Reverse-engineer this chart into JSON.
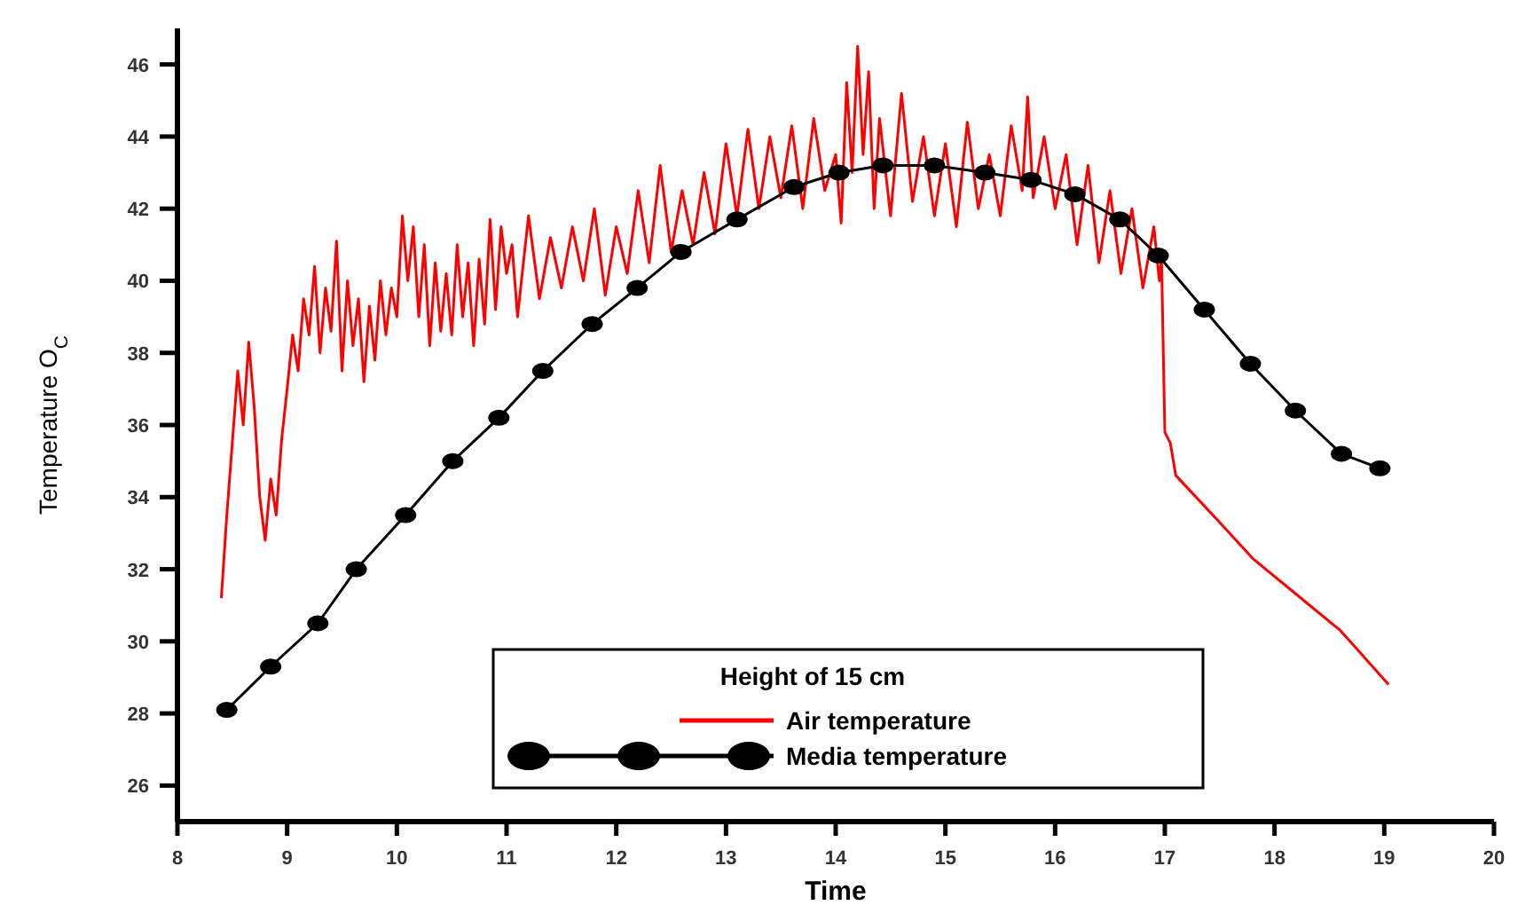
{
  "chart_data": {
    "type": "line",
    "xlabel": "Time",
    "ylabel": "Temperature O$_{C}$",
    "legend_title": "Height of 15 cm",
    "legend": "bottom",
    "grid": false,
    "xlim": [
      8,
      20
    ],
    "xticks": [
      8,
      9,
      10,
      11,
      12,
      13,
      14,
      15,
      16,
      17,
      18,
      19,
      20
    ],
    "ylim": [
      25,
      47
    ],
    "yticks": [
      26,
      28,
      30,
      32,
      34,
      36,
      38,
      40,
      42,
      44,
      46
    ],
    "series": [
      {
        "name": "Air temperature",
        "color": "#ff0000",
        "marker": "none",
        "x": [
          8.4,
          8.45,
          8.5,
          8.55,
          8.6,
          8.65,
          8.7,
          8.75,
          8.8,
          8.85,
          8.9,
          8.95,
          9.0,
          9.05,
          9.1,
          9.15,
          9.2,
          9.25,
          9.3,
          9.35,
          9.4,
          9.45,
          9.5,
          9.55,
          9.6,
          9.65,
          9.7,
          9.75,
          9.8,
          9.85,
          9.9,
          9.95,
          10.0,
          10.05,
          10.1,
          10.15,
          10.2,
          10.25,
          10.3,
          10.35,
          10.4,
          10.45,
          10.5,
          10.55,
          10.6,
          10.65,
          10.7,
          10.75,
          10.8,
          10.85,
          10.9,
          10.95,
          11.0,
          11.05,
          11.1,
          11.2,
          11.3,
          11.4,
          11.5,
          11.6,
          11.7,
          11.8,
          11.9,
          12.0,
          12.1,
          12.2,
          12.3,
          12.4,
          12.5,
          12.6,
          12.7,
          12.8,
          12.9,
          13.0,
          13.1,
          13.2,
          13.3,
          13.4,
          13.5,
          13.6,
          13.7,
          13.8,
          13.9,
          14.0,
          14.05,
          14.1,
          14.15,
          14.2,
          14.25,
          14.3,
          14.35,
          14.4,
          14.5,
          14.6,
          14.7,
          14.8,
          14.9,
          15.0,
          15.1,
          15.2,
          15.3,
          15.4,
          15.5,
          15.6,
          15.7,
          15.75,
          15.8,
          15.9,
          16.0,
          16.1,
          16.2,
          16.3,
          16.4,
          16.5,
          16.6,
          16.7,
          16.8,
          16.9,
          16.95,
          16.97,
          17.0,
          17.05,
          17.1,
          17.5,
          17.8,
          18.2,
          18.6,
          19.04
        ],
        "values": [
          31.2,
          33.5,
          35.5,
          37.5,
          36.0,
          38.3,
          36.5,
          34.0,
          32.8,
          34.5,
          33.5,
          35.6,
          37.0,
          38.5,
          37.5,
          39.5,
          38.5,
          40.4,
          38.0,
          39.8,
          38.6,
          41.1,
          37.5,
          40.0,
          38.2,
          39.5,
          37.2,
          39.3,
          37.8,
          40.0,
          38.5,
          39.8,
          39.0,
          41.8,
          40.0,
          41.5,
          39.0,
          41.0,
          38.2,
          40.5,
          38.6,
          40.2,
          38.5,
          41.0,
          39.0,
          40.5,
          38.2,
          40.6,
          38.8,
          41.7,
          39.2,
          41.5,
          40.2,
          41.0,
          39.0,
          41.8,
          39.5,
          41.2,
          39.8,
          41.5,
          40.0,
          42.0,
          39.6,
          41.5,
          40.2,
          42.5,
          40.5,
          43.2,
          40.8,
          42.5,
          41.0,
          43.0,
          41.3,
          43.8,
          41.8,
          44.2,
          42.0,
          44.0,
          42.3,
          44.3,
          42.0,
          44.5,
          42.5,
          43.5,
          41.6,
          45.5,
          43.0,
          46.5,
          43.5,
          45.8,
          42.0,
          44.5,
          41.8,
          45.2,
          42.2,
          44.0,
          41.8,
          43.8,
          41.5,
          44.4,
          42.0,
          43.5,
          41.8,
          44.3,
          42.5,
          45.1,
          42.3,
          44.0,
          42.0,
          43.5,
          41.0,
          43.2,
          40.5,
          42.5,
          40.2,
          42.0,
          39.8,
          41.5,
          40.0,
          40.6,
          35.8,
          35.5,
          34.6,
          33.3,
          32.3,
          31.3,
          30.3,
          28.8
        ]
      },
      {
        "name": "Media temperature",
        "color": "#000000",
        "marker": "circle",
        "x": [
          8.45,
          8.85,
          9.28,
          9.63,
          10.08,
          10.51,
          10.93,
          11.33,
          11.78,
          12.19,
          12.59,
          13.1,
          13.62,
          14.03,
          14.43,
          14.9,
          15.36,
          15.78,
          16.18,
          16.59,
          16.94,
          17.36,
          17.78,
          18.19,
          18.61,
          18.96
        ],
        "values": [
          28.1,
          29.3,
          30.5,
          32.0,
          33.5,
          35.0,
          36.2,
          37.5,
          38.8,
          39.8,
          40.8,
          41.7,
          42.6,
          43.0,
          43.2,
          43.2,
          43.0,
          42.8,
          42.4,
          41.7,
          40.7,
          39.2,
          37.7,
          36.4,
          35.2,
          34.8
        ]
      }
    ]
  }
}
